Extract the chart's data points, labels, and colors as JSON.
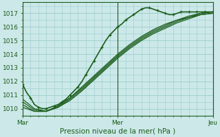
{
  "xlabel": "Pression niveau de la mer( hPa )",
  "bg_color": "#cce8e8",
  "grid_color": "#99cccc",
  "line_color": "#1a5c1a",
  "ylim": [
    1009.5,
    1017.8
  ],
  "yticks": [
    1010,
    1011,
    1012,
    1013,
    1014,
    1015,
    1016,
    1017
  ],
  "xtick_labels": [
    "Mar",
    "Mer",
    "Jeu"
  ],
  "xtick_positions": [
    0,
    48,
    96
  ],
  "x_total": 96,
  "series": [
    {
      "points": [
        [
          0,
          1011.8
        ],
        [
          2,
          1011.2
        ],
        [
          4,
          1010.8
        ],
        [
          6,
          1010.3
        ],
        [
          8,
          1010.1
        ],
        [
          10,
          1010.0
        ],
        [
          12,
          1010.0
        ],
        [
          14,
          1010.1
        ],
        [
          16,
          1010.2
        ],
        [
          18,
          1010.3
        ],
        [
          20,
          1010.5
        ],
        [
          22,
          1010.7
        ],
        [
          24,
          1011.0
        ],
        [
          26,
          1011.3
        ],
        [
          28,
          1011.6
        ],
        [
          30,
          1012.0
        ],
        [
          32,
          1012.5
        ],
        [
          34,
          1013.0
        ],
        [
          36,
          1013.5
        ],
        [
          38,
          1014.0
        ],
        [
          40,
          1014.5
        ],
        [
          42,
          1015.0
        ],
        [
          44,
          1015.4
        ],
        [
          46,
          1015.7
        ],
        [
          48,
          1016.0
        ],
        [
          50,
          1016.2
        ],
        [
          52,
          1016.5
        ],
        [
          54,
          1016.7
        ],
        [
          56,
          1016.9
        ],
        [
          58,
          1017.1
        ],
        [
          60,
          1017.3
        ],
        [
          62,
          1017.4
        ],
        [
          64,
          1017.4
        ],
        [
          66,
          1017.3
        ],
        [
          68,
          1017.2
        ],
        [
          70,
          1017.1
        ],
        [
          72,
          1017.0
        ],
        [
          74,
          1016.9
        ],
        [
          76,
          1016.9
        ],
        [
          78,
          1017.0
        ],
        [
          80,
          1017.1
        ],
        [
          82,
          1017.1
        ],
        [
          84,
          1017.1
        ],
        [
          86,
          1017.1
        ],
        [
          88,
          1017.1
        ],
        [
          90,
          1017.1
        ],
        [
          92,
          1017.1
        ],
        [
          94,
          1017.1
        ],
        [
          96,
          1017.1
        ]
      ],
      "lw": 1.2,
      "marker": true
    },
    {
      "points": [
        [
          0,
          1010.5
        ],
        [
          6,
          1009.9
        ],
        [
          12,
          1009.8
        ],
        [
          18,
          1010.1
        ],
        [
          24,
          1010.6
        ],
        [
          30,
          1011.3
        ],
        [
          36,
          1012.1
        ],
        [
          42,
          1012.9
        ],
        [
          48,
          1013.7
        ],
        [
          54,
          1014.4
        ],
        [
          60,
          1015.0
        ],
        [
          66,
          1015.5
        ],
        [
          72,
          1015.9
        ],
        [
          78,
          1016.3
        ],
        [
          84,
          1016.6
        ],
        [
          90,
          1016.9
        ],
        [
          96,
          1017.0
        ]
      ],
      "lw": 0.9,
      "marker": false
    },
    {
      "points": [
        [
          0,
          1010.7
        ],
        [
          6,
          1010.0
        ],
        [
          12,
          1009.8
        ],
        [
          18,
          1010.2
        ],
        [
          24,
          1010.8
        ],
        [
          30,
          1011.5
        ],
        [
          36,
          1012.3
        ],
        [
          42,
          1013.1
        ],
        [
          48,
          1013.9
        ],
        [
          54,
          1014.6
        ],
        [
          60,
          1015.2
        ],
        [
          66,
          1015.7
        ],
        [
          72,
          1016.1
        ],
        [
          78,
          1016.5
        ],
        [
          84,
          1016.7
        ],
        [
          90,
          1017.0
        ],
        [
          96,
          1017.1
        ]
      ],
      "lw": 0.9,
      "marker": false
    },
    {
      "points": [
        [
          0,
          1010.3
        ],
        [
          6,
          1009.8
        ],
        [
          12,
          1009.8
        ],
        [
          18,
          1010.1
        ],
        [
          24,
          1010.7
        ],
        [
          30,
          1011.4
        ],
        [
          36,
          1012.2
        ],
        [
          42,
          1013.0
        ],
        [
          48,
          1013.8
        ],
        [
          54,
          1014.5
        ],
        [
          60,
          1015.1
        ],
        [
          66,
          1015.6
        ],
        [
          72,
          1016.0
        ],
        [
          78,
          1016.4
        ],
        [
          84,
          1016.7
        ],
        [
          90,
          1016.9
        ],
        [
          96,
          1017.0
        ]
      ],
      "lw": 0.9,
      "marker": false
    },
    {
      "points": [
        [
          0,
          1010.1
        ],
        [
          6,
          1009.8
        ],
        [
          12,
          1009.8
        ],
        [
          18,
          1010.2
        ],
        [
          24,
          1010.8
        ],
        [
          30,
          1011.6
        ],
        [
          36,
          1012.4
        ],
        [
          42,
          1013.2
        ],
        [
          48,
          1014.0
        ],
        [
          54,
          1014.7
        ],
        [
          60,
          1015.3
        ],
        [
          66,
          1015.8
        ],
        [
          72,
          1016.2
        ],
        [
          78,
          1016.5
        ],
        [
          84,
          1016.8
        ],
        [
          90,
          1017.0
        ],
        [
          96,
          1017.1
        ]
      ],
      "lw": 0.9,
      "marker": false
    }
  ],
  "xlabel_fontsize": 7.5,
  "tick_fontsize": 6.5
}
